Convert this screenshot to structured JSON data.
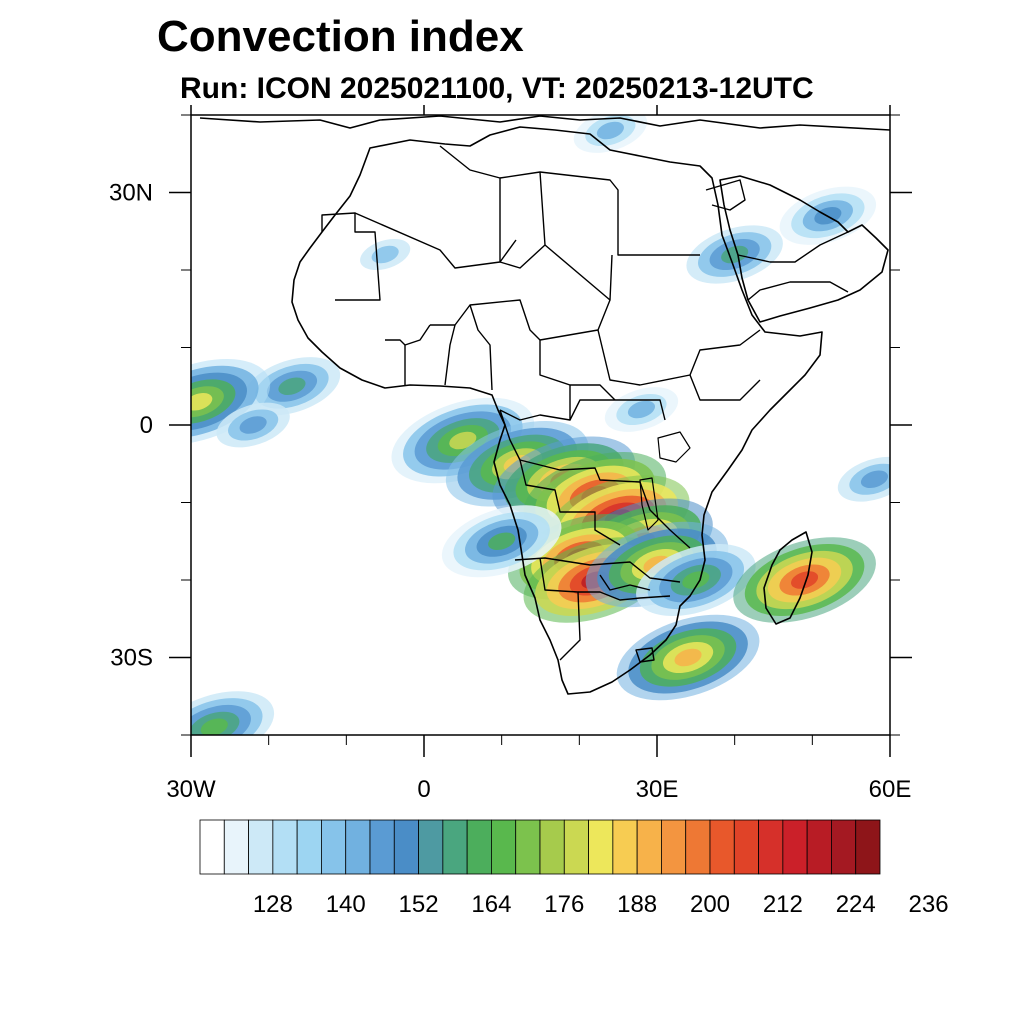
{
  "title": "Convection index",
  "subtitle": "Run: ICON 2025021100,  VT: 20250213-12UTC",
  "map": {
    "extent": {
      "lon": [
        -30,
        60
      ],
      "lat": [
        -40,
        40
      ]
    },
    "x_ticks": [
      {
        "lon": -30,
        "label": "30W"
      },
      {
        "lon": 0,
        "label": "0"
      },
      {
        "lon": 30,
        "label": "30E"
      },
      {
        "lon": 60,
        "label": "60E"
      }
    ],
    "y_ticks": [
      {
        "lat": 30,
        "label": "30N"
      },
      {
        "lat": 0,
        "label": "0"
      },
      {
        "lat": -30,
        "label": "30S"
      }
    ]
  },
  "colorbar": {
    "colors": [
      "#ffffff",
      "#e8f4fb",
      "#cde9f7",
      "#b3dff5",
      "#9dd5f2",
      "#86c3ea",
      "#71b1e0",
      "#5a9bd3",
      "#4a8dc7",
      "#4e9aa2",
      "#4aa67f",
      "#4cae5c",
      "#59b84d",
      "#7cc24d",
      "#a6cb4c",
      "#cbd852",
      "#ede75b",
      "#f7cc52",
      "#f7b24a",
      "#f39540",
      "#ee7834",
      "#e8582b",
      "#e04328",
      "#d6302a",
      "#cb2029",
      "#b81c25",
      "#a41922",
      "#8e1519"
    ],
    "labels": [
      "128",
      "140",
      "152",
      "164",
      "176",
      "188",
      "200",
      "212",
      "224",
      "236"
    ]
  },
  "chart_data": {
    "type": "heatmap",
    "title": "Convection index",
    "subtitle": "Run: ICON 2025021100,  VT: 20250213-12UTC",
    "xlim": [
      -30,
      60
    ],
    "ylim": [
      -40,
      40
    ],
    "levels": [
      120,
      124,
      128,
      132,
      136,
      140,
      144,
      148,
      152,
      156,
      160,
      164,
      168,
      172,
      176,
      180,
      184,
      188,
      192,
      196,
      200,
      204,
      208,
      212,
      216,
      220,
      224,
      228,
      232,
      236,
      240
    ],
    "cells": [
      {
        "lon": -17,
        "lat": 5,
        "value": 160
      },
      {
        "lon": -29,
        "lat": 3,
        "value": 185
      },
      {
        "lon": -22,
        "lat": 0,
        "value": 150
      },
      {
        "lon": 5,
        "lat": -2,
        "value": 180
      },
      {
        "lon": 12,
        "lat": -5,
        "value": 190
      },
      {
        "lon": 18,
        "lat": -7,
        "value": 200
      },
      {
        "lon": 22,
        "lat": -9,
        "value": 215
      },
      {
        "lon": 25,
        "lat": -12,
        "value": 225
      },
      {
        "lon": 28,
        "lat": -15,
        "value": 205
      },
      {
        "lon": 20,
        "lat": -17,
        "value": 215
      },
      {
        "lon": 22,
        "lat": -20,
        "value": 220
      },
      {
        "lon": 30,
        "lat": -18,
        "value": 195
      },
      {
        "lon": 35,
        "lat": -20,
        "value": 170
      },
      {
        "lon": 10,
        "lat": -15,
        "value": 165
      },
      {
        "lon": 34,
        "lat": -30,
        "value": 195
      },
      {
        "lon": 49,
        "lat": -20,
        "value": 210
      },
      {
        "lon": 40,
        "lat": 22,
        "value": 160
      },
      {
        "lon": 52,
        "lat": 27,
        "value": 155
      },
      {
        "lon": -5,
        "lat": 22,
        "value": 140
      },
      {
        "lon": 58,
        "lat": -7,
        "value": 150
      },
      {
        "lon": -27,
        "lat": -39,
        "value": 170
      },
      {
        "lon": 28,
        "lat": 2,
        "value": 145
      },
      {
        "lon": 24,
        "lat": 38,
        "value": 145
      }
    ]
  }
}
